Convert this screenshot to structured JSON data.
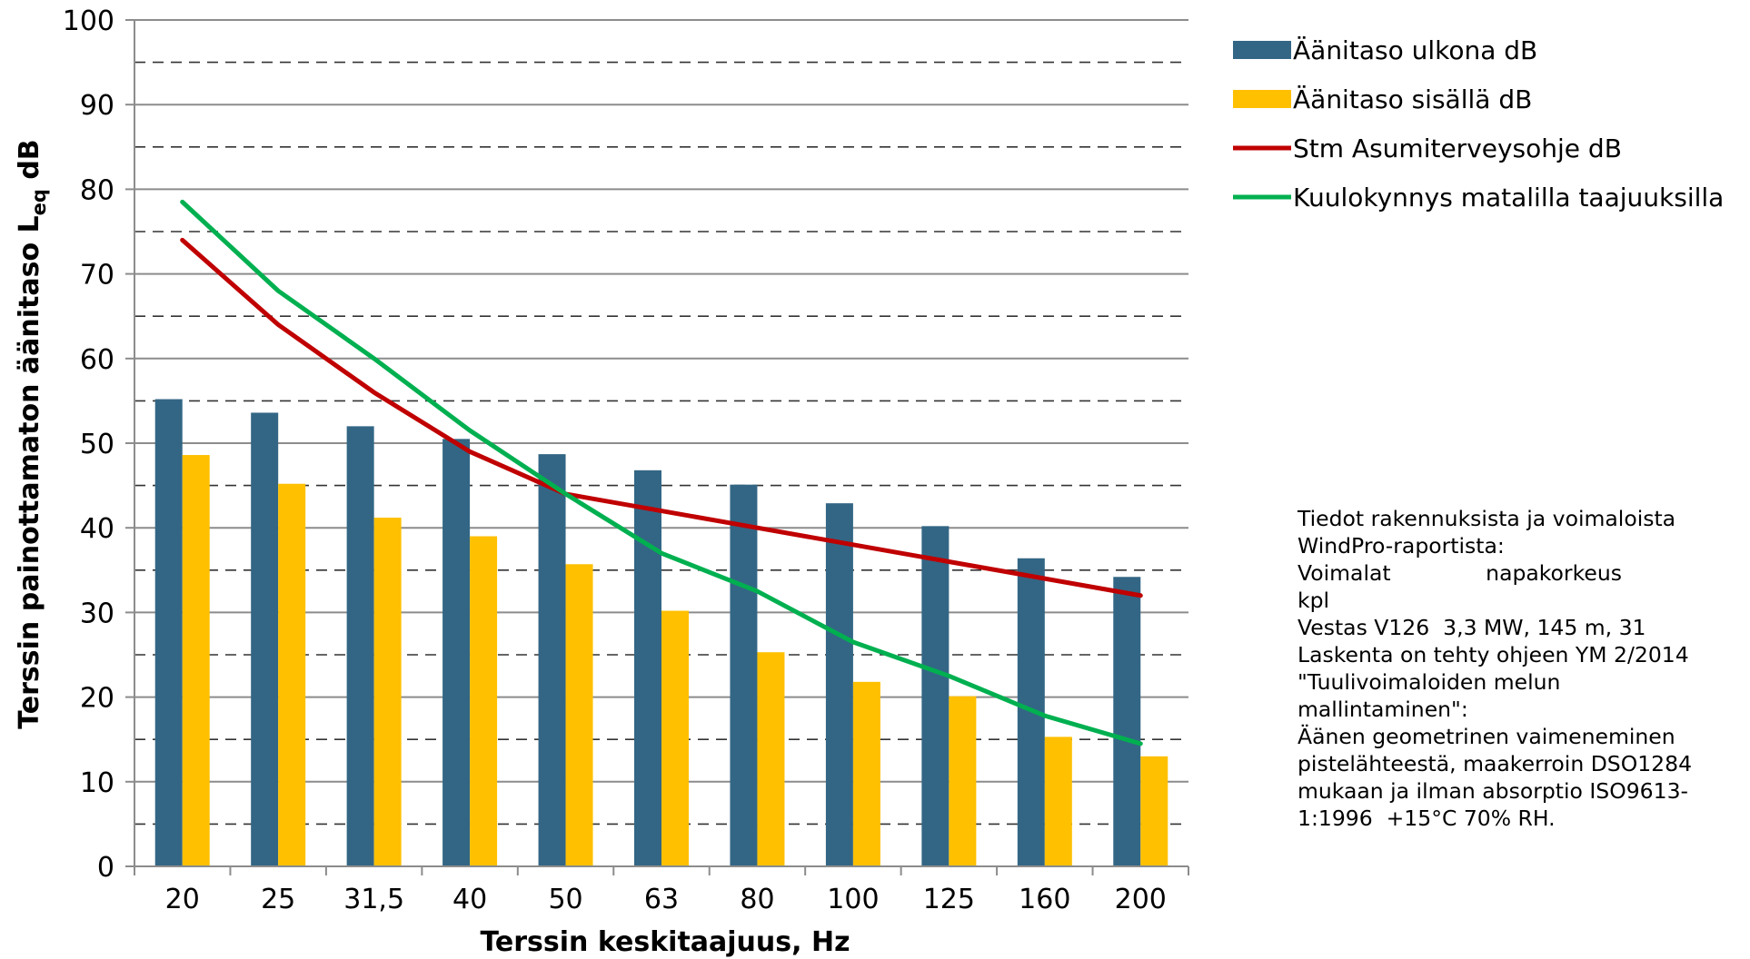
{
  "chart_data": {
    "type": "bar",
    "xlabel": "Terssin keskitaajuus, Hz",
    "ylabel": {
      "main": "Terssin painottamaton äänitaso L",
      "sub": "eq",
      "unit": " dB"
    },
    "categories": [
      "20",
      "25",
      "31,5",
      "40",
      "50",
      "63",
      "80",
      "100",
      "125",
      "160",
      "200"
    ],
    "ylim": [
      0,
      100
    ],
    "yticks": [
      "0",
      "10",
      "20",
      "30",
      "40",
      "50",
      "60",
      "70",
      "80",
      "90",
      "100"
    ],
    "grid": {
      "solid_every": 10,
      "dashed_offset": 5
    },
    "legend_position": "right",
    "series": [
      {
        "name": "Äänitaso ulkona dB",
        "kind": "bar",
        "color": "#336685",
        "values": [
          55.2,
          53.6,
          52.0,
          50.5,
          48.7,
          46.8,
          45.1,
          42.9,
          40.2,
          36.4,
          34.2
        ]
      },
      {
        "name": "Äänitaso sisällä dB",
        "kind": "bar",
        "color": "#FFC000",
        "values": [
          48.6,
          45.2,
          41.2,
          39.0,
          35.7,
          30.2,
          25.3,
          21.8,
          20.1,
          15.3,
          13.0
        ]
      },
      {
        "name": "Stm Asumiterveysohje dB",
        "kind": "line",
        "color": "#C00000",
        "values": [
          74,
          64,
          56,
          49,
          44,
          42,
          40,
          38,
          36,
          34,
          32
        ]
      },
      {
        "name": "Kuulokynnys matalilla taajuuksilla",
        "kind": "line",
        "color": "#00B050",
        "values": [
          78.5,
          68,
          60,
          51.5,
          44,
          37,
          32.5,
          26.5,
          22.5,
          17.8,
          14.5
        ]
      }
    ]
  },
  "note": {
    "lines": [
      "Tiedot rakennuksista ja voimaloista",
      "WindPro-raportista:",
      "Voimalat              napakorkeus",
      "kpl",
      "Vestas V126  3,3 MW, 145 m, 31",
      "Laskenta on tehty ohjeen YM 2/2014",
      "\"Tuulivoimaloiden melun",
      "mallintaminen\":",
      "Äänen geometrinen vaimeneminen",
      "pistelähteestä, maakerroin DSO1284",
      "mukaan ja ilman absorptio ISO9613-",
      "1:1996  +15°C 70% RH."
    ]
  }
}
